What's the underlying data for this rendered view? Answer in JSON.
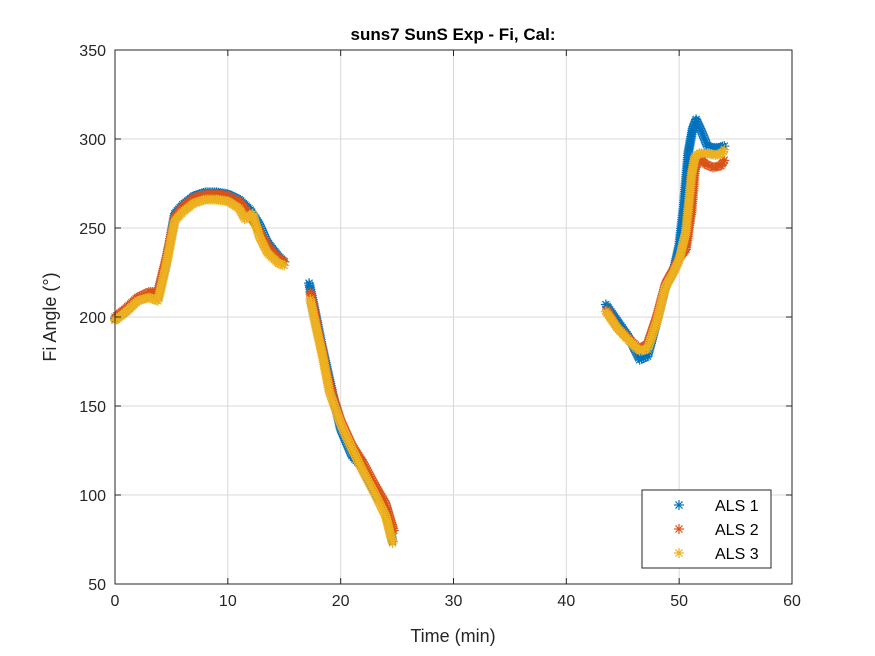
{
  "chart_data": {
    "type": "scatter",
    "title": "suns7 SunS Exp - Fi, Cal:",
    "xlabel": "Time (min)",
    "ylabel": "Fi Angle (°)",
    "xlim": [
      0,
      60
    ],
    "ylim": [
      50,
      350
    ],
    "xticks": [
      "0",
      "10",
      "20",
      "30",
      "40",
      "50",
      "60"
    ],
    "yticks": [
      "50",
      "100",
      "150",
      "200",
      "250",
      "300",
      "350"
    ],
    "grid": true,
    "legend_position": "bottom-right",
    "marker": "asterisk",
    "series": [
      {
        "name": "ALS 1",
        "color": "#0072BD",
        "segments": [
          [
            [
              0,
              199
            ],
            [
              1,
              203
            ],
            [
              2,
              210
            ],
            [
              3,
              212
            ],
            [
              3.8,
              211
            ],
            [
              4.5,
              230
            ],
            [
              5.3,
              258
            ],
            [
              6,
              263
            ],
            [
              7,
              268
            ],
            [
              8,
              270
            ],
            [
              9,
              270
            ],
            [
              10,
              269
            ],
            [
              11,
              266
            ],
            [
              12,
              260
            ],
            [
              12.8,
              252
            ],
            [
              13.5,
              242
            ],
            [
              14.5,
              234
            ],
            [
              15,
              231
            ]
          ],
          [
            [
              17.2,
              219
            ],
            [
              17.7,
              204
            ],
            [
              18.3,
              185
            ],
            [
              19,
              165
            ],
            [
              20,
              137
            ],
            [
              21,
              122
            ],
            [
              22,
              115
            ],
            [
              23,
              102
            ],
            [
              24,
              92
            ],
            [
              24.6,
              74
            ]
          ],
          [
            [
              43.5,
              207
            ],
            [
              44.5,
              198
            ],
            [
              45.5,
              189
            ],
            [
              46.5,
              176
            ],
            [
              47.2,
              178
            ],
            [
              48,
              197
            ],
            [
              48.8,
              217
            ],
            [
              49.5,
              226
            ],
            [
              50,
              240
            ],
            [
              50.4,
              262
            ],
            [
              50.8,
              292
            ],
            [
              51.2,
              306
            ],
            [
              51.5,
              311
            ],
            [
              52,
              304
            ],
            [
              52.5,
              296
            ],
            [
              53,
              295
            ],
            [
              53.5,
              295
            ],
            [
              54,
              296
            ]
          ]
        ]
      },
      {
        "name": "ALS 2",
        "color": "#D95319",
        "segments": [
          [
            [
              0,
              200
            ],
            [
              1,
              205
            ],
            [
              2,
              211
            ],
            [
              3,
              214
            ],
            [
              3.8,
              214
            ],
            [
              4.5,
              232
            ],
            [
              5.3,
              256
            ],
            [
              6,
              262
            ],
            [
              7,
              267
            ],
            [
              8,
              269
            ],
            [
              9,
              269
            ],
            [
              10,
              268
            ],
            [
              11,
              265
            ],
            [
              12,
              257
            ],
            [
              12.8,
              248
            ],
            [
              13.5,
              240
            ],
            [
              14.5,
              233
            ],
            [
              15,
              231
            ]
          ],
          [
            [
              17.3,
              214
            ],
            [
              17.8,
              198
            ],
            [
              18.4,
              180
            ],
            [
              19,
              162
            ],
            [
              20,
              142
            ],
            [
              21,
              128
            ],
            [
              22,
              118
            ],
            [
              23,
              106
            ],
            [
              24,
              95
            ],
            [
              24.7,
              80
            ]
          ],
          [
            [
              43.6,
              204
            ],
            [
              44.5,
              194
            ],
            [
              45.5,
              188
            ],
            [
              46.5,
              182
            ],
            [
              47.2,
              185
            ],
            [
              48,
              200
            ],
            [
              48.8,
              219
            ],
            [
              49.5,
              227
            ],
            [
              50,
              233
            ],
            [
              50.6,
              238
            ],
            [
              51.1,
              260
            ],
            [
              51.4,
              283
            ],
            [
              51.8,
              290
            ],
            [
              52.3,
              286
            ],
            [
              53,
              284
            ],
            [
              53.7,
              285
            ],
            [
              54,
              288
            ]
          ]
        ]
      },
      {
        "name": "ALS 3",
        "color": "#EDB120",
        "segments": [
          [
            [
              0,
              198
            ],
            [
              1,
              203
            ],
            [
              2,
              209
            ],
            [
              3,
              211
            ],
            [
              3.8,
              209
            ],
            [
              4.5,
              228
            ],
            [
              5.3,
              254
            ],
            [
              6,
              259
            ],
            [
              7,
              264
            ],
            [
              8,
              266
            ],
            [
              9,
              266
            ],
            [
              10,
              265
            ],
            [
              11,
              261
            ],
            [
              11.5,
              255
            ],
            [
              12.2,
              258
            ],
            [
              12.8,
              245
            ],
            [
              13.5,
              236
            ],
            [
              14.5,
              230
            ],
            [
              15,
              229
            ]
          ],
          [
            [
              17.3,
              210
            ],
            [
              17.8,
              195
            ],
            [
              18.4,
              178
            ],
            [
              19,
              158
            ],
            [
              20,
              140
            ],
            [
              21,
              126
            ],
            [
              22,
              113
            ],
            [
              23,
              101
            ],
            [
              24,
              88
            ],
            [
              24.6,
              73
            ]
          ],
          [
            [
              43.5,
              203
            ],
            [
              44.5,
              194
            ],
            [
              45.5,
              187
            ],
            [
              46.5,
              181
            ],
            [
              47.2,
              182
            ],
            [
              48,
              197
            ],
            [
              48.8,
              217
            ],
            [
              49.5,
              225
            ],
            [
              50,
              232
            ],
            [
              50.6,
              248
            ],
            [
              51.1,
              280
            ],
            [
              51.4,
              290
            ],
            [
              51.8,
              292
            ],
            [
              52.5,
              292
            ],
            [
              53.2,
              291
            ],
            [
              53.8,
              292
            ],
            [
              54,
              294
            ]
          ]
        ]
      }
    ]
  }
}
